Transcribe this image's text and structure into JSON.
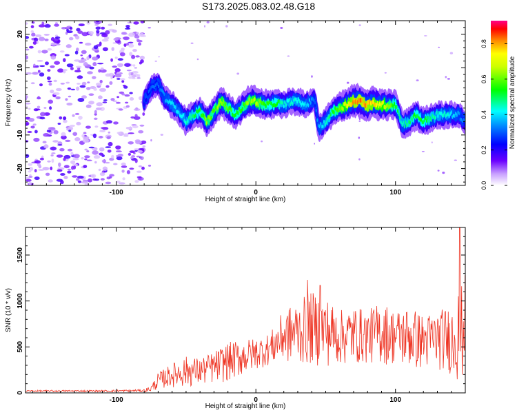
{
  "title": "S173.2025.083.02.48.G18",
  "chart_data": [
    {
      "type": "heatmap",
      "title": "S173.2025.083.02.48.G18",
      "xlabel": "Height of straight line (km)",
      "ylabel": "Frequency (Hz)",
      "xlim": [
        -165,
        150
      ],
      "ylim": [
        -25,
        24
      ],
      "xticks": [
        -100,
        0,
        100
      ],
      "yticks": [
        -20,
        -10,
        0,
        10,
        20
      ],
      "colorbar": {
        "label": "Normalized spectral amplitude",
        "range": [
          0,
          0.93
        ],
        "ticks": [
          0.0,
          0.2,
          0.4,
          0.6,
          0.8
        ],
        "tick_labels": [
          "0.0",
          "0.2",
          "0.4",
          "0.6",
          "0.8"
        ]
      },
      "noise_region_x": [
        -165,
        -80
      ],
      "ridge": {
        "x": [
          -80,
          -75,
          -70,
          -65,
          -60,
          -55,
          -50,
          -45,
          -40,
          -35,
          -30,
          -25,
          -20,
          -15,
          -10,
          -5,
          0,
          5,
          10,
          15,
          20,
          25,
          30,
          35,
          40,
          42,
          45,
          50,
          55,
          60,
          65,
          70,
          75,
          80,
          85,
          90,
          95,
          100,
          105,
          110,
          115,
          120,
          125,
          130,
          135,
          140,
          145,
          150
        ],
        "y": [
          0,
          4,
          5,
          1,
          -1,
          -3,
          -6,
          -4,
          -3,
          -6,
          -3,
          0,
          -2,
          -4,
          -2,
          0,
          0,
          -1,
          -1,
          -0.5,
          -1,
          0,
          0,
          -1,
          0,
          1,
          -8,
          -6,
          -3,
          -2,
          -1,
          0,
          0,
          -1,
          -0.5,
          -1,
          -1,
          -1,
          -7,
          -6,
          -4,
          -6,
          -5,
          -4,
          -4,
          -4,
          -4,
          -6
        ],
        "amplitude": [
          0.3,
          0.35,
          0.35,
          0.4,
          0.45,
          0.45,
          0.5,
          0.55,
          0.6,
          0.7,
          0.65,
          0.75,
          0.65,
          0.6,
          0.65,
          0.7,
          0.75,
          0.65,
          0.6,
          0.6,
          0.5,
          0.5,
          0.5,
          0.45,
          0.4,
          0.35,
          0.4,
          0.5,
          0.6,
          0.7,
          0.8,
          0.9,
          0.93,
          0.9,
          0.85,
          0.8,
          0.7,
          0.6,
          0.5,
          0.55,
          0.6,
          0.6,
          0.55,
          0.5,
          0.5,
          0.45,
          0.4,
          0.35
        ]
      }
    },
    {
      "type": "line",
      "xlabel": "Height of straight line (km)",
      "ylabel": "SNR (10 * v/v)",
      "xlim": [
        -165,
        150
      ],
      "ylim": [
        0,
        1800
      ],
      "xticks": [
        -100,
        0,
        100
      ],
      "yticks": [
        0,
        500,
        1000,
        1500
      ],
      "color": "#ee3322",
      "envelope": {
        "x": [
          -165,
          -150,
          -130,
          -110,
          -90,
          -80,
          -75,
          -70,
          -60,
          -50,
          -40,
          -30,
          -20,
          -10,
          0,
          10,
          20,
          30,
          40,
          50,
          60,
          70,
          80,
          90,
          100,
          110,
          120,
          130,
          140,
          145,
          150
        ],
        "min": [
          10,
          10,
          10,
          10,
          10,
          10,
          10,
          40,
          60,
          60,
          80,
          100,
          120,
          180,
          250,
          300,
          320,
          300,
          300,
          280,
          300,
          300,
          320,
          300,
          300,
          250,
          250,
          250,
          200,
          100,
          150
        ],
        "max": [
          30,
          30,
          30,
          30,
          35,
          40,
          80,
          220,
          320,
          400,
          380,
          450,
          550,
          580,
          600,
          650,
          900,
          1000,
          1100,
          1050,
          900,
          950,
          900,
          1000,
          900,
          950,
          850,
          900,
          950,
          1100,
          1250
        ]
      },
      "spikes": [
        {
          "x": 37,
          "y": 1230
        },
        {
          "x": 46,
          "y": 1170
        },
        {
          "x": 145,
          "y": 1050
        },
        {
          "x": 146,
          "y": 1800
        },
        {
          "x": 150,
          "y": 1280
        }
      ]
    }
  ]
}
